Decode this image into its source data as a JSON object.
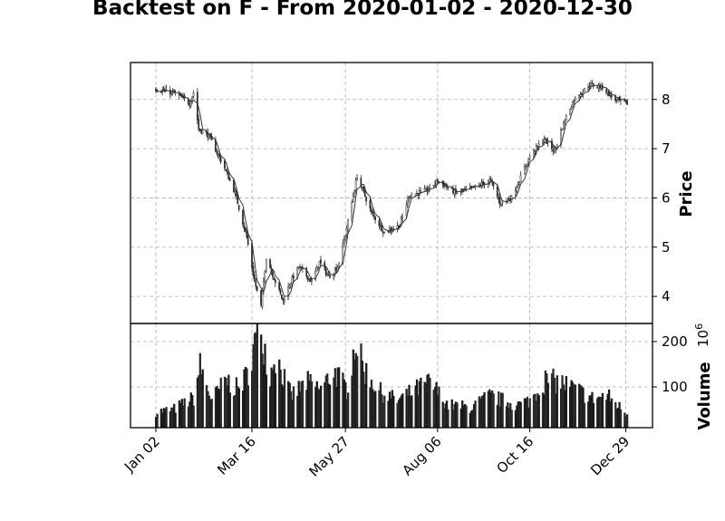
{
  "title": "Backtest on F - From 2020-01-02 - 2020-12-30",
  "chart_data": [
    {
      "type": "candlestick",
      "ylabel": "Price",
      "ylim": [
        3.45,
        8.75
      ],
      "yticks": [
        "4",
        "5",
        "6",
        "7",
        "8"
      ],
      "grid": true,
      "x_range": [
        "2020-01-02",
        "2020-12-30"
      ],
      "series": [
        {
          "values_key": "close",
          "keypoints": [
            [
              "2020-01-02",
              8.21
            ],
            [
              "2020-01-17",
              8.12
            ],
            [
              "2020-01-28",
              7.92
            ],
            [
              "2020-01-31",
              8.15
            ],
            [
              "2020-02-04",
              7.4
            ],
            [
              "2020-02-12",
              7.25
            ],
            [
              "2020-02-24",
              6.6
            ],
            [
              "2020-03-03",
              6.1
            ],
            [
              "2020-03-12",
              5.2
            ],
            [
              "2020-03-18",
              4.3
            ],
            [
              "2020-03-23",
              3.8
            ],
            [
              "2020-03-27",
              4.8
            ],
            [
              "2020-04-03",
              4.3
            ],
            [
              "2020-04-09",
              3.9
            ],
            [
              "2020-04-14",
              4.25
            ],
            [
              "2020-04-21",
              4.6
            ],
            [
              "2020-05-01",
              4.3
            ],
            [
              "2020-05-07",
              4.7
            ],
            [
              "2020-05-14",
              4.4
            ],
            [
              "2020-05-21",
              4.6
            ],
            [
              "2020-05-27",
              5.25
            ],
            [
              "2020-06-05",
              6.45
            ],
            [
              "2020-06-16",
              5.7
            ],
            [
              "2020-06-26",
              5.3
            ],
            [
              "2020-07-08",
              5.45
            ],
            [
              "2020-07-15",
              6.05
            ],
            [
              "2020-07-29",
              6.15
            ],
            [
              "2020-08-06",
              6.35
            ],
            [
              "2020-08-20",
              6.1
            ],
            [
              "2020-09-02",
              6.2
            ],
            [
              "2020-09-16",
              6.35
            ],
            [
              "2020-09-23",
              5.9
            ],
            [
              "2020-10-02",
              6.0
            ],
            [
              "2020-10-16",
              6.85
            ],
            [
              "2020-10-27",
              7.2
            ],
            [
              "2020-11-04",
              6.95
            ],
            [
              "2020-11-12",
              7.6
            ],
            [
              "2020-11-19",
              8.0
            ],
            [
              "2020-12-01",
              8.3
            ],
            [
              "2020-12-11",
              8.25
            ],
            [
              "2020-12-20",
              8.0
            ],
            [
              "2020-12-30",
              7.92
            ]
          ]
        }
      ]
    },
    {
      "type": "bar",
      "ylabel": "Volume",
      "scale_label": "10",
      "scale_exponent": "6",
      "ylim": [
        10,
        240
      ],
      "yticks": [
        "100",
        "200"
      ],
      "grid": true,
      "series": [
        {
          "values_key": "volume",
          "keypoints": [
            [
              "2020-01-02",
              45
            ],
            [
              "2020-01-15",
              50
            ],
            [
              "2020-01-31",
              75
            ],
            [
              "2020-02-05",
              145
            ],
            [
              "2020-02-14",
              70
            ],
            [
              "2020-02-25",
              115
            ],
            [
              "2020-03-05",
              95
            ],
            [
              "2020-03-12",
              125
            ],
            [
              "2020-03-18",
              195
            ],
            [
              "2020-03-23",
              230
            ],
            [
              "2020-03-30",
              120
            ],
            [
              "2020-04-02",
              175
            ],
            [
              "2020-04-15",
              80
            ],
            [
              "2020-04-27",
              110
            ],
            [
              "2020-05-08",
              95
            ],
            [
              "2020-05-18",
              135
            ],
            [
              "2020-05-28",
              95
            ],
            [
              "2020-06-04",
              205
            ],
            [
              "2020-06-09",
              145
            ],
            [
              "2020-06-22",
              90
            ],
            [
              "2020-07-06",
              70
            ],
            [
              "2020-07-21",
              95
            ],
            [
              "2020-07-31",
              110
            ],
            [
              "2020-08-14",
              60
            ],
            [
              "2020-09-01",
              55
            ],
            [
              "2020-09-15",
              80
            ],
            [
              "2020-10-06",
              60
            ],
            [
              "2020-10-16",
              70
            ],
            [
              "2020-10-28",
              115
            ],
            [
              "2020-11-09",
              110
            ],
            [
              "2020-11-20",
              95
            ],
            [
              "2020-12-03",
              75
            ],
            [
              "2020-12-15",
              80
            ],
            [
              "2020-12-30",
              40
            ]
          ]
        }
      ]
    }
  ],
  "xticks": [
    "Jan 02",
    "Mar 16",
    "May 27",
    "Aug 06",
    "Oct 16",
    "Dec 29"
  ],
  "xtick_dates": [
    "2020-01-02",
    "2020-03-16",
    "2020-05-27",
    "2020-08-06",
    "2020-10-16",
    "2020-12-29"
  ],
  "colors": {
    "candle": "#2b2b2b",
    "bar": "#1a1a1a",
    "ma": "#333333",
    "grid": "#b0b0b0"
  }
}
